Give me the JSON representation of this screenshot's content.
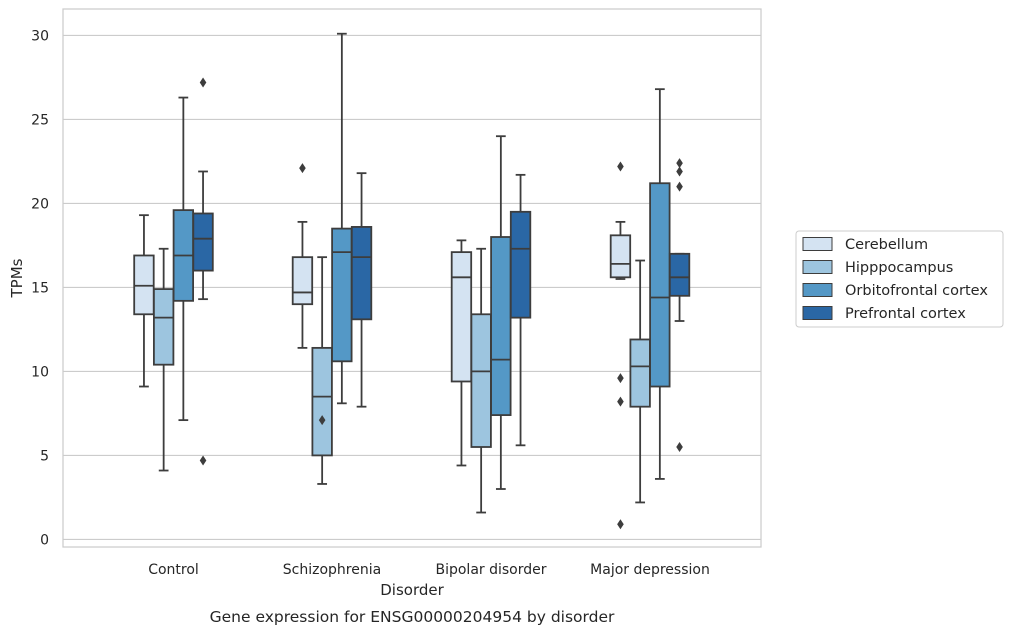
{
  "chart_data": {
    "type": "box",
    "xlabel": "Disorder",
    "ylabel": "TPMs",
    "caption": "Gene expression for ENSG00000204954 by disorder",
    "ylim": [
      -0.5,
      31.5
    ],
    "yticks": [
      0,
      5,
      10,
      15,
      20,
      25,
      30
    ],
    "grid": "horizontal",
    "legend_position": "right",
    "categories": [
      "Control",
      "Schizophrenia",
      "Bipolar disorder",
      "Major depression"
    ],
    "series": [
      {
        "name": "Cerebellum",
        "color": "#d4e3f2",
        "boxes": [
          {
            "whisker_low": 9.1,
            "q1": 13.4,
            "median": 15.1,
            "q3": 16.9,
            "whisker_high": 19.3,
            "outliers": []
          },
          {
            "whisker_low": 11.4,
            "q1": 14.0,
            "median": 14.7,
            "q3": 16.8,
            "whisker_high": 18.9,
            "outliers": [
              22.1
            ]
          },
          {
            "whisker_low": 4.4,
            "q1": 9.4,
            "median": 15.6,
            "q3": 17.1,
            "whisker_high": 17.8,
            "outliers": []
          },
          {
            "whisker_low": 15.5,
            "q1": 15.6,
            "median": 16.4,
            "q3": 18.1,
            "whisker_high": 18.9,
            "outliers": [
              22.2,
              9.6,
              8.2,
              0.9
            ]
          }
        ]
      },
      {
        "name": "Hipppocampus",
        "color": "#9dc5df",
        "boxes": [
          {
            "whisker_low": 4.1,
            "q1": 10.4,
            "median": 13.2,
            "q3": 14.9,
            "whisker_high": 17.3,
            "outliers": []
          },
          {
            "whisker_low": 3.3,
            "q1": 5.0,
            "median": 8.5,
            "q3": 11.4,
            "whisker_high": 16.8,
            "outliers": [
              7.1
            ]
          },
          {
            "whisker_low": 1.6,
            "q1": 5.5,
            "median": 10.0,
            "q3": 13.4,
            "whisker_high": 17.3,
            "outliers": []
          },
          {
            "whisker_low": 2.2,
            "q1": 7.9,
            "median": 10.3,
            "q3": 11.9,
            "whisker_high": 16.6,
            "outliers": []
          }
        ]
      },
      {
        "name": "Orbitofrontal cortex",
        "color": "#5498c6",
        "boxes": [
          {
            "whisker_low": 7.1,
            "q1": 14.2,
            "median": 16.9,
            "q3": 19.6,
            "whisker_high": 26.3,
            "outliers": []
          },
          {
            "whisker_low": 8.1,
            "q1": 10.6,
            "median": 17.1,
            "q3": 18.5,
            "whisker_high": 30.1,
            "outliers": []
          },
          {
            "whisker_low": 3.0,
            "q1": 7.4,
            "median": 10.7,
            "q3": 18.0,
            "whisker_high": 24.0,
            "outliers": []
          },
          {
            "whisker_low": 3.6,
            "q1": 9.1,
            "median": 14.4,
            "q3": 21.2,
            "whisker_high": 26.8,
            "outliers": []
          }
        ]
      },
      {
        "name": "Prefrontal cortex",
        "color": "#2a67a5",
        "boxes": [
          {
            "whisker_low": 14.3,
            "q1": 16.0,
            "median": 17.9,
            "q3": 19.4,
            "whisker_high": 21.9,
            "outliers": [
              27.2,
              4.7
            ]
          },
          {
            "whisker_low": 7.9,
            "q1": 13.1,
            "median": 16.8,
            "q3": 18.6,
            "whisker_high": 21.8,
            "outliers": []
          },
          {
            "whisker_low": 5.6,
            "q1": 13.2,
            "median": 17.3,
            "q3": 19.5,
            "whisker_high": 21.7,
            "outliers": []
          },
          {
            "whisker_low": 13.0,
            "q1": 14.5,
            "median": 15.6,
            "q3": 17.0,
            "whisker_high": 17.0,
            "outliers": [
              22.4,
              21.9,
              21.0,
              5.5
            ]
          }
        ]
      }
    ]
  }
}
